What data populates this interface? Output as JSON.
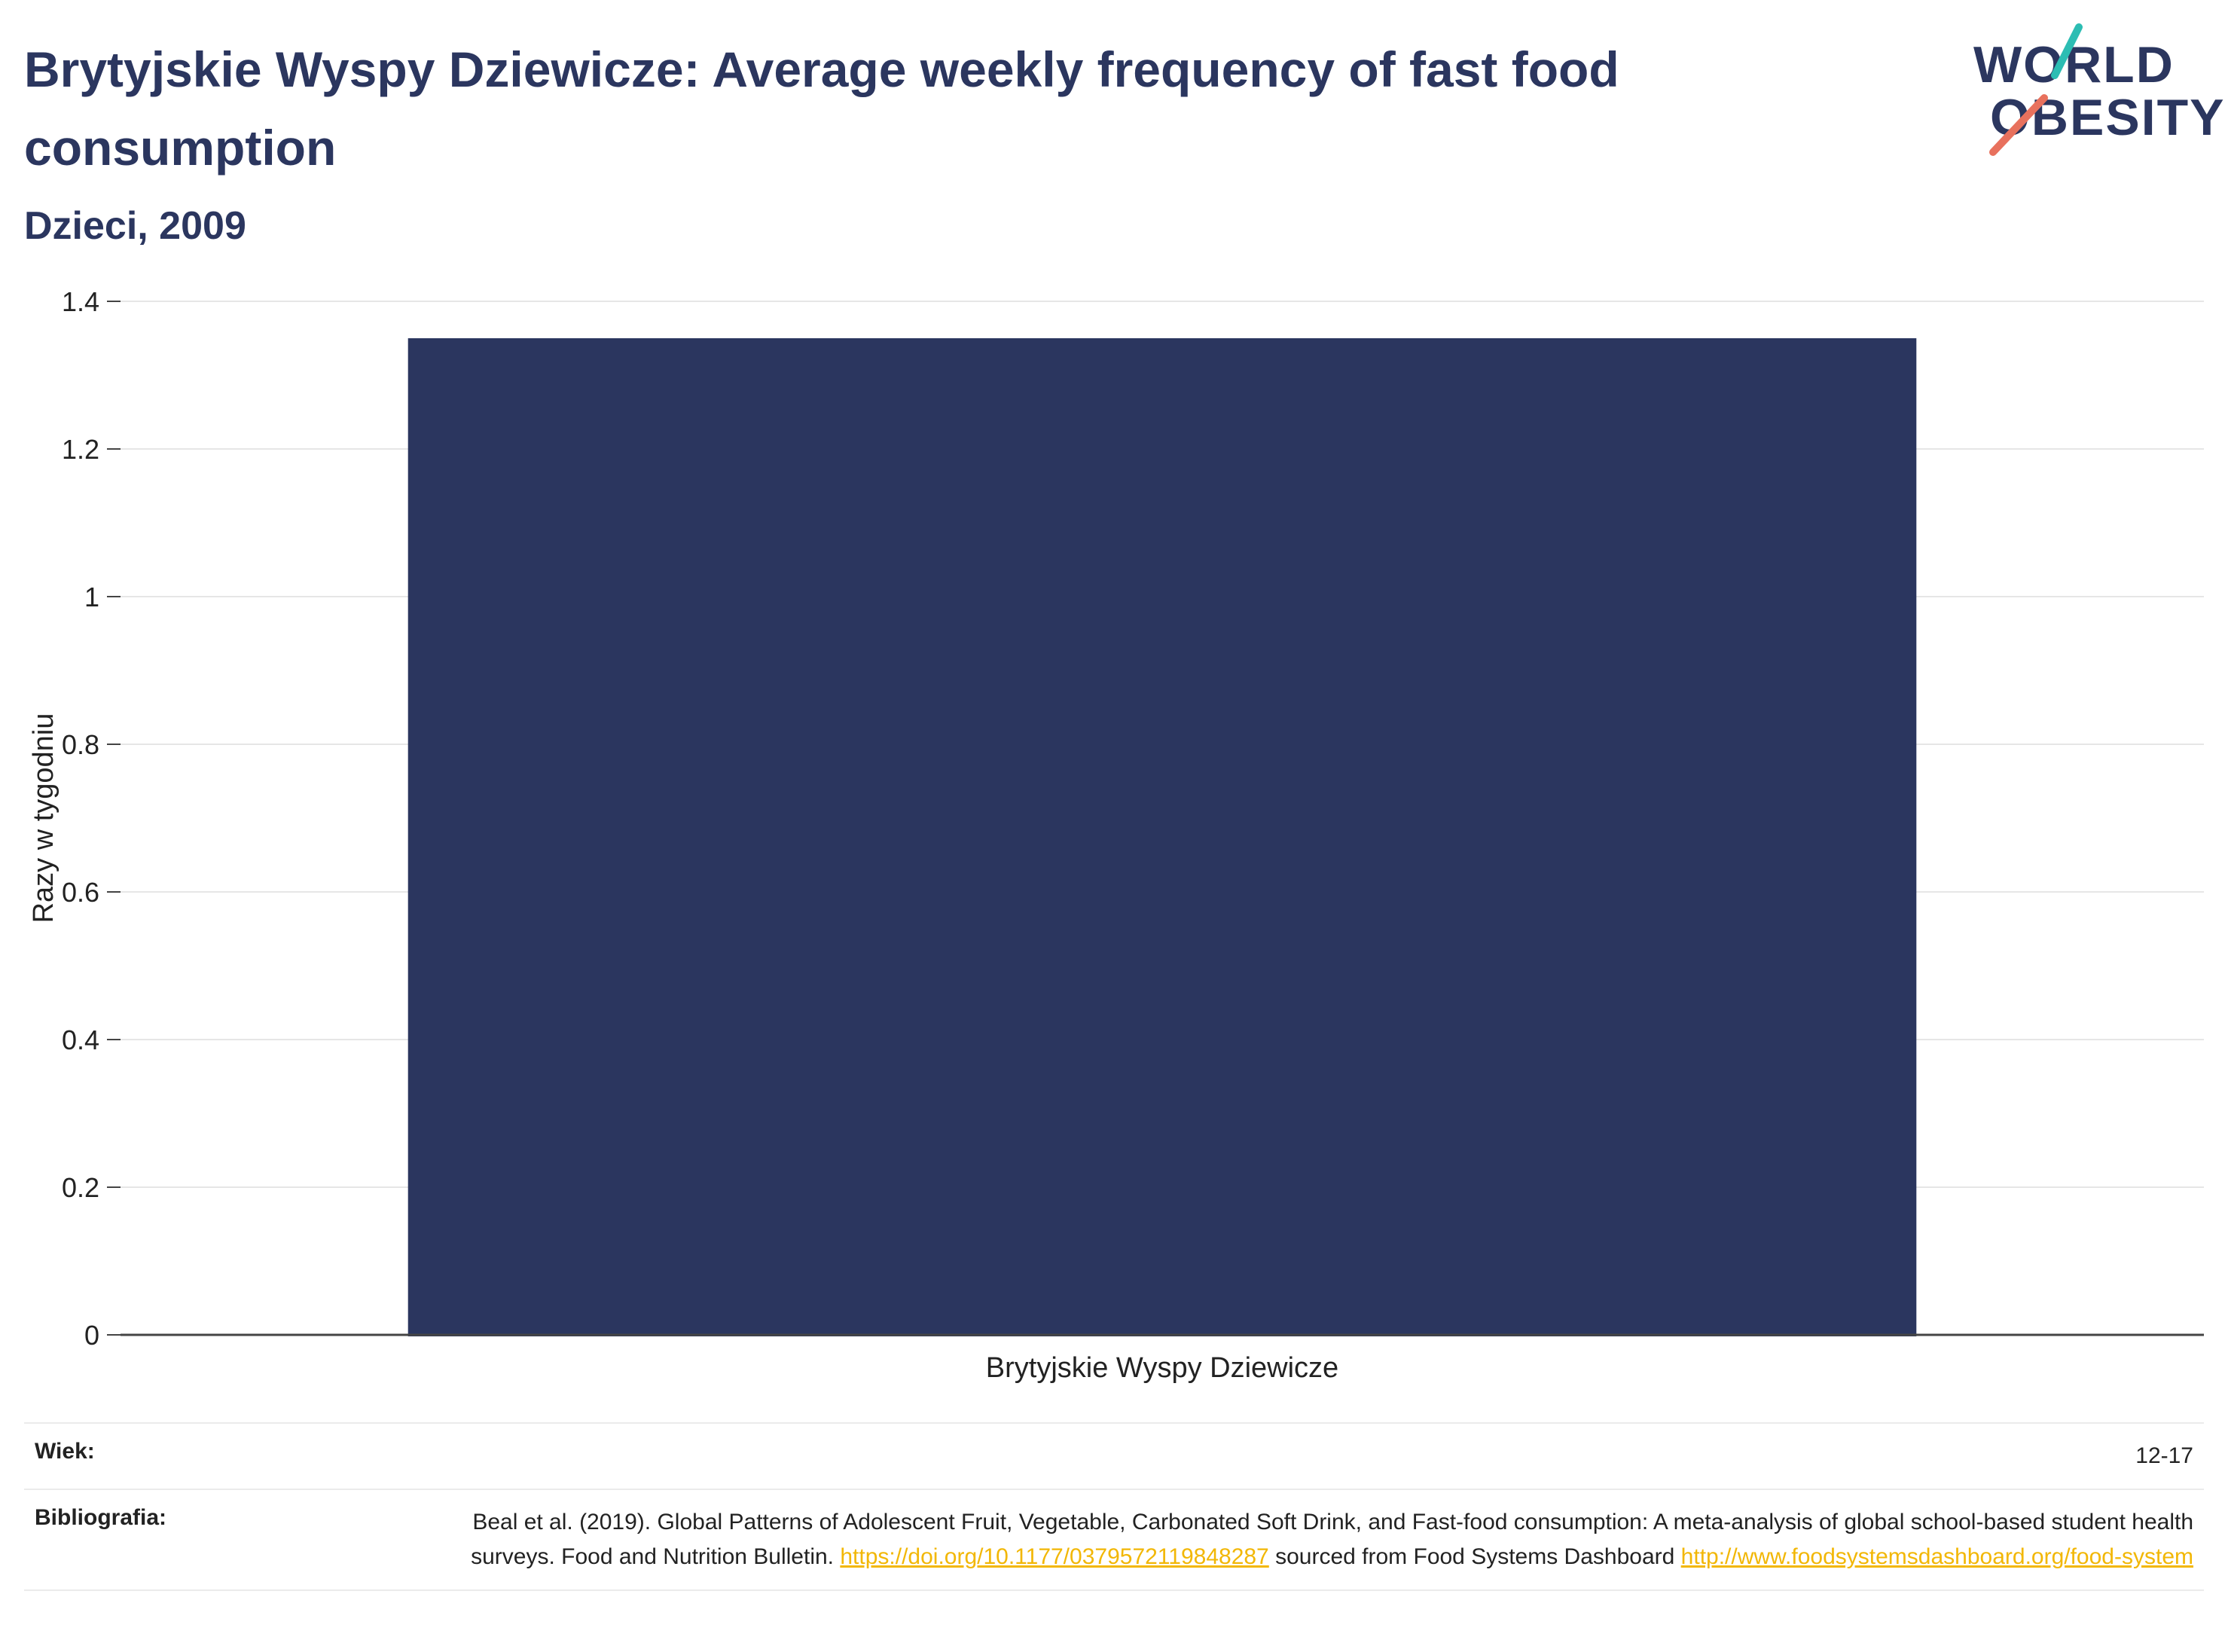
{
  "header": {
    "title": "Brytyjskie Wyspy Dziewicze: Average weekly frequency of fast food consumption",
    "subtitle": "Dzieci, 2009"
  },
  "logo": {
    "line1": "WORLD",
    "line2": "OBESITY",
    "colors": {
      "text": "#2b365f",
      "slash_top": "#2cbdb3",
      "slash_bottom": "#e8715d"
    }
  },
  "chart_data": {
    "type": "bar",
    "categories": [
      "Brytyjskie Wyspy Dziewicze"
    ],
    "values": [
      1.35
    ],
    "title": "Brytyjskie Wyspy Dziewicze: Average weekly frequency of fast food consumption",
    "xlabel": "",
    "ylabel": "Razy w tygodniu",
    "ylim": [
      0,
      1.4
    ],
    "yticks": [
      "0",
      "0.2",
      "0.4",
      "0.6",
      "0.8",
      "1",
      "1.2",
      "1.4"
    ],
    "grid": true,
    "legend": "none",
    "bar_color": "#2b365f"
  },
  "meta": {
    "age_label": "Wiek:",
    "age_value": "12-17",
    "bib_label": "Bibliografia:",
    "bib_text_1": "Beal et al. (2019). Global Patterns of Adolescent Fruit, Vegetable, Carbonated Soft Drink, and Fast-food consumption: A meta-analysis of global school-based student health surveys. Food and Nutrition Bulletin.",
    "bib_link_1": "https://doi.org/10.1177/0379572119848287",
    "bib_text_2": "sourced from Food Systems Dashboard",
    "bib_link_2": "http://www.foodsystemsdashboard.org/food-system",
    "link_color": "#f2b705"
  }
}
